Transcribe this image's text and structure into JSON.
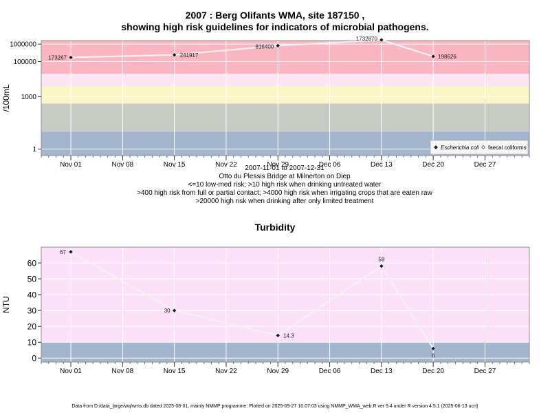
{
  "chart_data": [
    {
      "type": "line",
      "title_line1": "2007 : Berg Olifants WMA, site 187150 ,",
      "title_line2": "showing high risk guidelines for indicators of microbial pathogens.",
      "ylabel": "/100mL",
      "y_scale": "log10",
      "ylim_log10": [
        -0.37,
        6.2
      ],
      "y_ticks": [
        {
          "value": 1,
          "label": "1"
        },
        {
          "value": 1000,
          "label": "1000"
        },
        {
          "value": 100000,
          "label": "100000"
        },
        {
          "value": 1000000,
          "label": "1000000"
        }
      ],
      "x_range_days": [
        -4,
        62
      ],
      "x_ticks": [
        {
          "day": 0,
          "label": "Nov 01"
        },
        {
          "day": 7,
          "label": "Nov 08"
        },
        {
          "day": 14,
          "label": "Nov 15"
        },
        {
          "day": 21,
          "label": "Nov 22"
        },
        {
          "day": 28,
          "label": "Nov 29"
        },
        {
          "day": 35,
          "label": "Dec 06"
        },
        {
          "day": 42,
          "label": "Dec 13"
        },
        {
          "day": 49,
          "label": "Dec 20"
        },
        {
          "day": 56,
          "label": "Dec 27"
        }
      ],
      "bands": [
        {
          "from": -0.37,
          "to": 1.0,
          "color": "#a3b5cd"
        },
        {
          "from": 1.0,
          "to": 2.6,
          "color": "#c6ccc4"
        },
        {
          "from": 2.6,
          "to": 3.6,
          "color": "#fbf6c5"
        },
        {
          "from": 3.6,
          "to": 4.3,
          "color": "#fce4f4"
        },
        {
          "from": 4.3,
          "to": 6.2,
          "color": "#fab5c2"
        }
      ],
      "series": [
        {
          "name": "Escherichia coli",
          "points": [
            {
              "day": 0,
              "value": 173267,
              "label": "173267"
            },
            {
              "day": 14,
              "value": 241917,
              "label": "241917"
            },
            {
              "day": 28,
              "value": 816400,
              "label": "816400"
            },
            {
              "day": 42,
              "value": 1732870,
              "label": "1732870"
            },
            {
              "day": 49,
              "value": 198626,
              "label": "198626"
            }
          ]
        }
      ],
      "legend": {
        "position": "bottom-right",
        "entries": [
          "Escherichia coli",
          "faecal coliforms"
        ]
      },
      "caption": [
        "2007-11-01 to 2007-12-31",
        "Otto du Plessis Bridge at Milnerton on Diep",
        "<=10 low-med risk; >10 high risk when drinking untreated water",
        ">400 high risk from full or partial contact; >4000 high risk when irrigating crops that are eaten raw",
        ">20000 high risk when drinking after only limited treatment"
      ]
    },
    {
      "type": "line",
      "title": "Turbidity",
      "ylabel": "NTU",
      "ylim": [
        -2.5,
        70
      ],
      "y_ticks": [
        0,
        10,
        20,
        30,
        40,
        50,
        60
      ],
      "x_range_days": [
        -4,
        62
      ],
      "x_ticks": [
        {
          "day": 0,
          "label": "Nov 01"
        },
        {
          "day": 7,
          "label": "Nov 08"
        },
        {
          "day": 14,
          "label": "Nov 15"
        },
        {
          "day": 21,
          "label": "Nov 22"
        },
        {
          "day": 28,
          "label": "Nov 29"
        },
        {
          "day": 35,
          "label": "Dec 06"
        },
        {
          "day": 42,
          "label": "Dec 13"
        },
        {
          "day": 49,
          "label": "Dec 20"
        },
        {
          "day": 56,
          "label": "Dec 27"
        }
      ],
      "bands": [
        {
          "from": -2.5,
          "to": 10,
          "color": "#a3b5cd"
        },
        {
          "from": 10,
          "to": 70,
          "color": "#fce0f8"
        }
      ],
      "series": [
        {
          "name": "Turbidity",
          "points": [
            {
              "day": 0,
              "value": 67,
              "label": "67"
            },
            {
              "day": 14,
              "value": 30,
              "label": "30"
            },
            {
              "day": 28,
              "value": 14.3,
              "label": "14.3"
            },
            {
              "day": 42,
              "value": 58,
              "label": "58"
            },
            {
              "day": 49,
              "value": 6,
              "label": "6"
            }
          ]
        }
      ]
    }
  ],
  "footer": "Data from D:/data_large/wq/wms.db dated 2025-08-01, mainly NMMP programme. Plotted on 2025-09-27 10:07:03 using NMMP_WMA_web.R ver 9.4 under R version 4.5.1 (2025-06-13 ucrt)"
}
